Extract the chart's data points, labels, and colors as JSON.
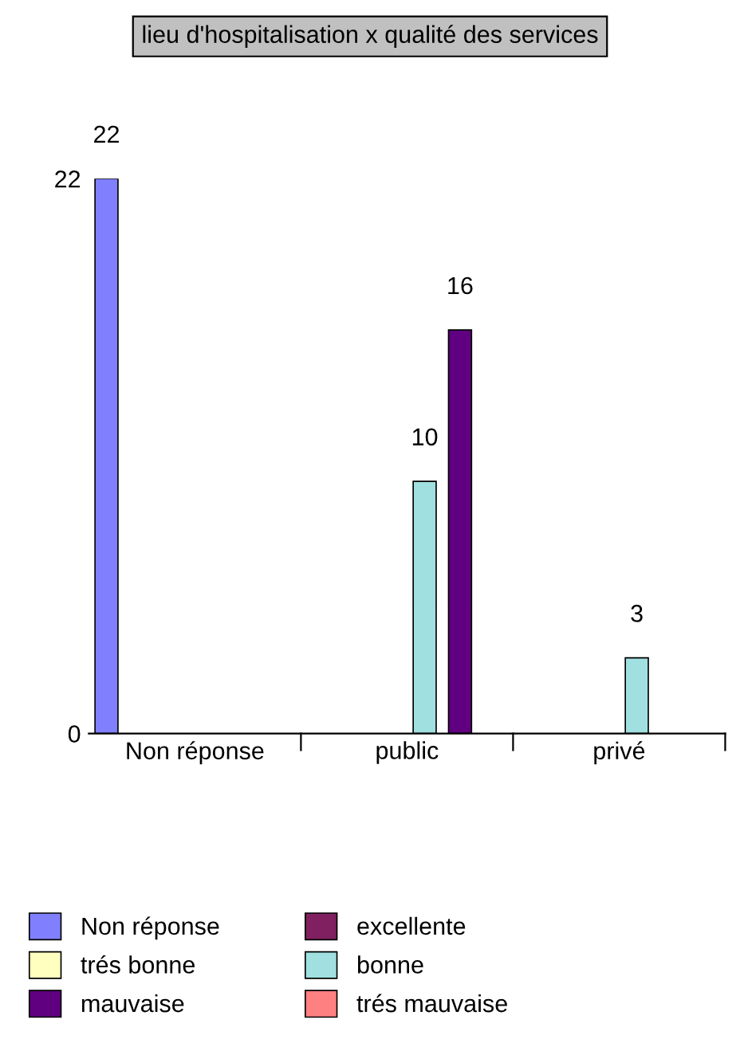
{
  "chart_data": {
    "type": "bar",
    "title": "lieu d'hospitalisation x qualité des services",
    "categories": [
      "Non réponse",
      "public",
      "privé"
    ],
    "series": [
      {
        "name": "Non réponse",
        "color": "#8080ff",
        "values": [
          22,
          null,
          null
        ],
        "value_labels": [
          "22",
          null,
          null
        ]
      },
      {
        "name": "excellente",
        "color": "#802060",
        "values": [
          null,
          null,
          null
        ],
        "value_labels": [
          null,
          null,
          null
        ]
      },
      {
        "name": "trés bonne",
        "color": "#ffffc0",
        "values": [
          null,
          null,
          null
        ],
        "value_labels": [
          null,
          null,
          null
        ]
      },
      {
        "name": "bonne",
        "color": "#a0e0e0",
        "values": [
          null,
          10,
          3
        ],
        "value_labels": [
          null,
          "10",
          "3"
        ]
      },
      {
        "name": "mauvaise",
        "color": "#600080",
        "values": [
          null,
          16,
          null
        ],
        "value_labels": [
          null,
          "16",
          null
        ]
      },
      {
        "name": "trés mauvaise",
        "color": "#ff8080",
        "values": [
          null,
          null,
          null
        ],
        "value_labels": [
          null,
          null,
          null
        ]
      }
    ],
    "ylim": [
      0,
      22
    ],
    "yticks": [
      0,
      22
    ],
    "grid": false,
    "legend": "bottom"
  }
}
